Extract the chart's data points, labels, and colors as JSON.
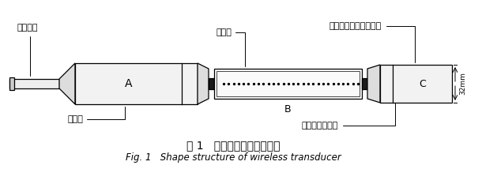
{
  "fig_title_cn": "图 1   无线变送器的外形结构",
  "fig_title_en": "Fig. 1   Shape structure of wireless transducer",
  "label_A": "A",
  "label_B": "B",
  "label_C": "C",
  "label_antenna": "射频天线",
  "label_control": "控制端",
  "label_sensor": "感应元",
  "label_ultrasonic": "超音频数字信号发射头",
  "label_water": "水位数据采集端",
  "label_dim": "32mm",
  "bg_color": "#ffffff",
  "draw_color": "#000000"
}
